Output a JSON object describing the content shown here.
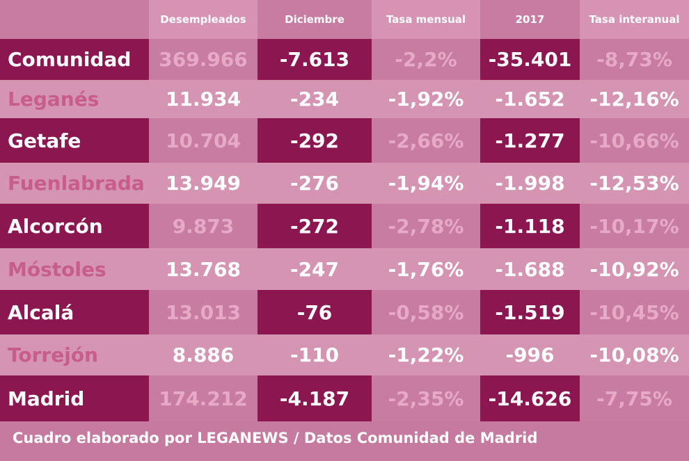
{
  "colors": {
    "page_bg": "#c77a9f",
    "band_dark": "#c87ca1",
    "band_light": "#d494b2",
    "header_col": "#d693b3",
    "maroon": "#8c1650",
    "pale_text": "#e6aac6",
    "pink_text": "#c85d8c",
    "white": "#ffffff"
  },
  "header": {
    "columns": [
      "Desempleados",
      "Diciembre",
      "Tasa mensual",
      "2017",
      "Tasa interanual"
    ]
  },
  "rows": [
    {
      "name": "Comunidad",
      "cells": [
        "369.966",
        "-7.613",
        "-2,2%",
        "-35.401",
        "-8,73%"
      ]
    },
    {
      "name": "Leganés",
      "cells": [
        "11.934",
        "-234",
        "-1,92%",
        "-1.652",
        "-12,16%"
      ]
    },
    {
      "name": "Getafe",
      "cells": [
        "10.704",
        "-292",
        "-2,66%",
        "-1.277",
        "-10,66%"
      ]
    },
    {
      "name": "Fuenlabrada",
      "cells": [
        "13.949",
        "-276",
        "-1,94%",
        "-1.998",
        "-12,53%"
      ]
    },
    {
      "name": "Alcorcón",
      "cells": [
        "9.873",
        "-272",
        "-2,78%",
        "-1.118",
        "-10,17%"
      ]
    },
    {
      "name": "Móstoles",
      "cells": [
        "13.768",
        "-247",
        "-1,76%",
        "-1.688",
        "-10,92%"
      ]
    },
    {
      "name": "Alcalá",
      "cells": [
        "13.013",
        "-76",
        "-0,58%",
        "-1.519",
        "-10,45%"
      ]
    },
    {
      "name": "Torrejón",
      "cells": [
        "8.886",
        "-110",
        "-1,22%",
        "-996",
        "-10,08%"
      ]
    },
    {
      "name": "Madrid",
      "cells": [
        "174.212",
        "-4.187",
        "-2,35%",
        "-14.626",
        "-7,75%"
      ]
    }
  ],
  "footer": "Cuadro elaborado por LEGANEWS / Datos Comunidad de Madrid",
  "chart_data": {
    "type": "table",
    "columns": [
      "",
      "Desempleados",
      "Diciembre",
      "Tasa mensual",
      "2017",
      "Tasa interanual"
    ],
    "rows": [
      [
        "Comunidad",
        "369.966",
        "-7.613",
        "-2,2%",
        "-35.401",
        "-8,73%"
      ],
      [
        "Leganés",
        "11.934",
        "-234",
        "-1,92%",
        "-1.652",
        "-12,16%"
      ],
      [
        "Getafe",
        "10.704",
        "-292",
        "-2,66%",
        "-1.277",
        "-10,66%"
      ],
      [
        "Fuenlabrada",
        "13.949",
        "-276",
        "-1,94%",
        "-1.998",
        "-12,53%"
      ],
      [
        "Alcorcón",
        "9.873",
        "-272",
        "-2,78%",
        "-1.118",
        "-10,17%"
      ],
      [
        "Móstoles",
        "13.768",
        "-247",
        "-1,76%",
        "-1.688",
        "-10,92%"
      ],
      [
        "Alcalá",
        "13.013",
        "-76",
        "-0,58%",
        "-1.519",
        "-10,45%"
      ],
      [
        "Torrejón",
        "8.886",
        "-110",
        "-1,22%",
        "-996",
        "-10,08%"
      ],
      [
        "Madrid",
        "174.212",
        "-4.187",
        "-2,35%",
        "-14.626",
        "-7,75%"
      ]
    ]
  }
}
